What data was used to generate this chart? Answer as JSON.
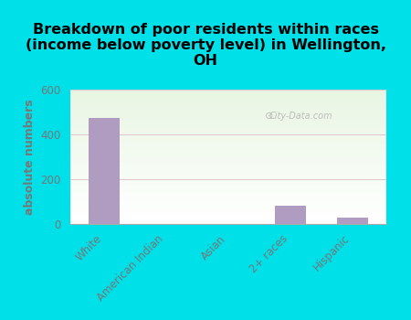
{
  "title": "Breakdown of poor residents within races\n(income below poverty level) in Wellington,\nOH",
  "categories": [
    "White",
    "American Indian",
    "Asian",
    "2+ races",
    "Hispanic"
  ],
  "values": [
    475,
    0,
    0,
    80,
    30
  ],
  "bar_color": "#B09CC0",
  "ylabel": "absolute numbers",
  "ylim": [
    0,
    600
  ],
  "yticks": [
    0,
    200,
    400,
    600
  ],
  "bg_color": "#00E0E8",
  "plot_bg_top": "#e8f5e2",
  "plot_bg_bottom": "#ffffff",
  "watermark": "City-Data.com",
  "title_fontsize": 11.5,
  "ylabel_fontsize": 9,
  "tick_fontsize": 8.5,
  "label_color": "#777777"
}
